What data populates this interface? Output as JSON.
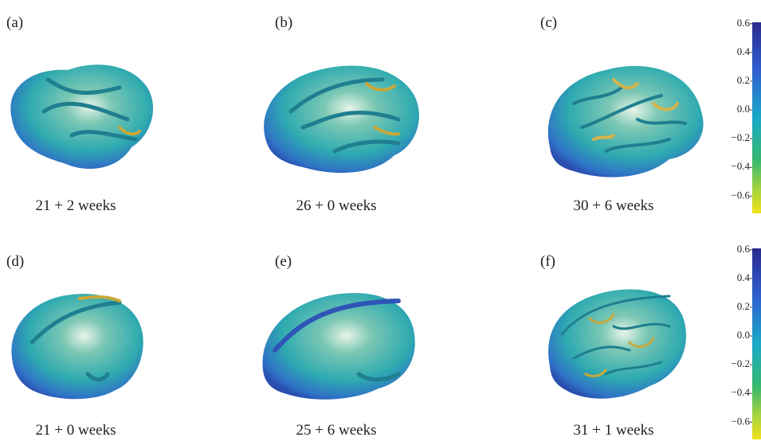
{
  "panels": [
    {
      "label": "(a)",
      "caption": "21 + 2 weeks"
    },
    {
      "label": "(b)",
      "caption": "26 + 0 weeks"
    },
    {
      "label": "(c)",
      "caption": "30 + 6 weeks"
    },
    {
      "label": "(d)",
      "caption": "21 + 0 weeks"
    },
    {
      "label": "(e)",
      "caption": "25 + 6 weeks"
    },
    {
      "label": "(f)",
      "caption": "31 + 1 weeks"
    }
  ],
  "colorbars": [
    {
      "lim": [
        -0.72,
        0.61
      ],
      "ticks": [
        0.6,
        0.4,
        0.2,
        {
          "value": 0,
          "label": "0.0"
        },
        {
          "value": -0.2,
          "label": "−0.2"
        },
        {
          "value": -0.4,
          "label": "−0.4"
        },
        {
          "value": -0.6,
          "label": "−0.6"
        }
      ]
    },
    {
      "lim": [
        -0.72,
        0.61
      ],
      "ticks": [
        0.6,
        0.4,
        0.2,
        {
          "value": 0,
          "label": "0.0"
        },
        {
          "value": -0.2,
          "label": "−0.2"
        },
        {
          "value": -0.4,
          "label": "−0.4"
        },
        {
          "value": -0.6,
          "label": "−0.6"
        }
      ]
    }
  ]
}
